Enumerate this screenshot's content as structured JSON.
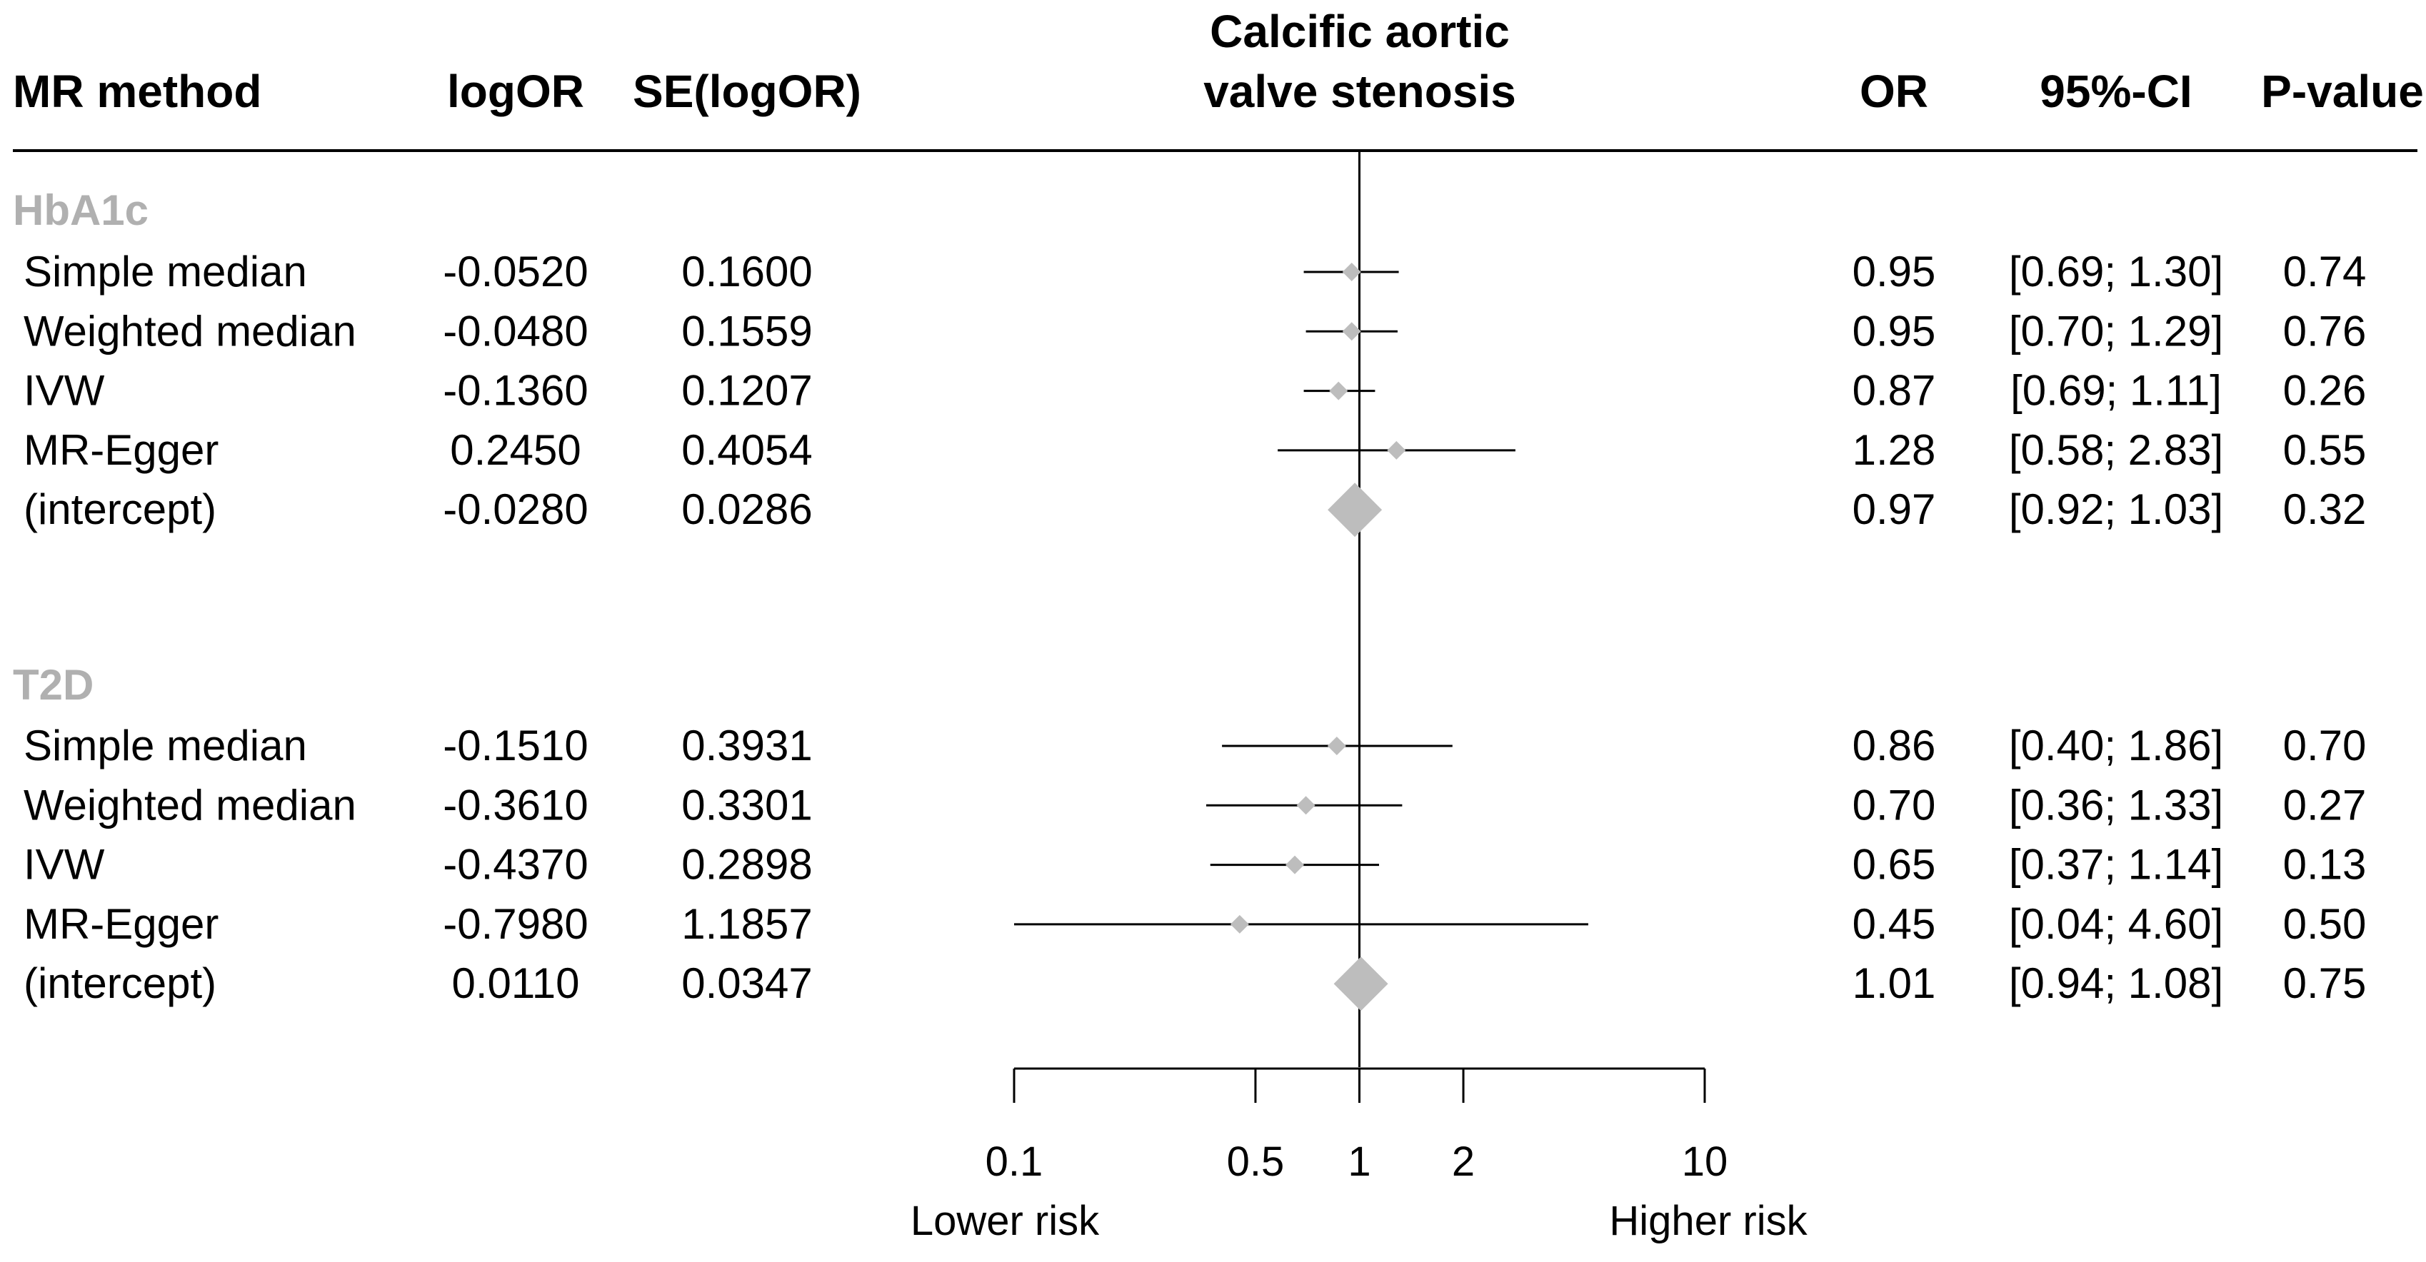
{
  "chart_data": {
    "type": "forest",
    "title": [
      "Calcific aortic",
      "valve stenosis"
    ],
    "columns": {
      "method": "MR method",
      "logor": "logOR",
      "se": "SE(logOR)",
      "or": "OR",
      "ci": "95%-CI",
      "p": "P-value"
    },
    "x_axis": {
      "scale": "log",
      "ticks": [
        "0.1",
        "0.5",
        "1",
        "2",
        "10"
      ],
      "tick_values": [
        0.1,
        0.5,
        1,
        2,
        10
      ],
      "reference": 1,
      "range": [
        0.1,
        10
      ],
      "label_left": "Lower risk",
      "label_right": "Higher risk"
    },
    "groups": [
      {
        "name": "HbA1c",
        "rows": [
          {
            "method": "Simple median",
            "logor": "-0.0520",
            "se": "0.1600",
            "or_text": "0.95",
            "ci_text": "[0.69; 1.30]",
            "p": "0.74",
            "or": 0.95,
            "lo": 0.69,
            "hi": 1.3,
            "marker": "point"
          },
          {
            "method": "Weighted median",
            "logor": "-0.0480",
            "se": "0.1559",
            "or_text": "0.95",
            "ci_text": "[0.70; 1.29]",
            "p": "0.76",
            "or": 0.95,
            "lo": 0.7,
            "hi": 1.29,
            "marker": "point"
          },
          {
            "method": "IVW",
            "logor": "-0.1360",
            "se": "0.1207",
            "or_text": "0.87",
            "ci_text": "[0.69; 1.11]",
            "p": "0.26",
            "or": 0.87,
            "lo": 0.69,
            "hi": 1.11,
            "marker": "point"
          },
          {
            "method": "MR-Egger",
            "logor": "0.2450",
            "se": "0.4054",
            "or_text": "1.28",
            "ci_text": "[0.58; 2.83]",
            "p": "0.55",
            "or": 1.28,
            "lo": 0.58,
            "hi": 2.83,
            "marker": "point"
          },
          {
            "method": "(intercept)",
            "logor": "-0.0280",
            "se": "0.0286",
            "or_text": "0.97",
            "ci_text": "[0.92; 1.03]",
            "p": "0.32",
            "or": 0.97,
            "lo": 0.92,
            "hi": 1.03,
            "marker": "diamond"
          }
        ]
      },
      {
        "name": "T2D",
        "rows": [
          {
            "method": "Simple median",
            "logor": "-0.1510",
            "se": "0.3931",
            "or_text": "0.86",
            "ci_text": "[0.40; 1.86]",
            "p": "0.70",
            "or": 0.86,
            "lo": 0.4,
            "hi": 1.86,
            "marker": "point"
          },
          {
            "method": "Weighted median",
            "logor": "-0.3610",
            "se": "0.3301",
            "or_text": "0.70",
            "ci_text": "[0.36; 1.33]",
            "p": "0.27",
            "or": 0.7,
            "lo": 0.36,
            "hi": 1.33,
            "marker": "point"
          },
          {
            "method": "IVW",
            "logor": "-0.4370",
            "se": "0.2898",
            "or_text": "0.65",
            "ci_text": "[0.37; 1.14]",
            "p": "0.13",
            "or": 0.65,
            "lo": 0.37,
            "hi": 1.14,
            "marker": "point"
          },
          {
            "method": "MR-Egger",
            "logor": "-0.7980",
            "se": "1.1857",
            "or_text": "0.45",
            "ci_text": "[0.04; 4.60]",
            "p": "0.50",
            "or": 0.45,
            "lo": 0.04,
            "hi": 4.6,
            "marker": "point"
          },
          {
            "method": "(intercept)",
            "logor": "0.0110",
            "se": "0.0347",
            "or_text": "1.01",
            "ci_text": "[0.94; 1.08]",
            "p": "0.75",
            "or": 1.01,
            "lo": 0.94,
            "hi": 1.08,
            "marker": "diamond"
          }
        ]
      }
    ],
    "colors": {
      "marker": "#bdbdbd",
      "group_label": "#b0b0b0",
      "line": "#000000"
    }
  }
}
